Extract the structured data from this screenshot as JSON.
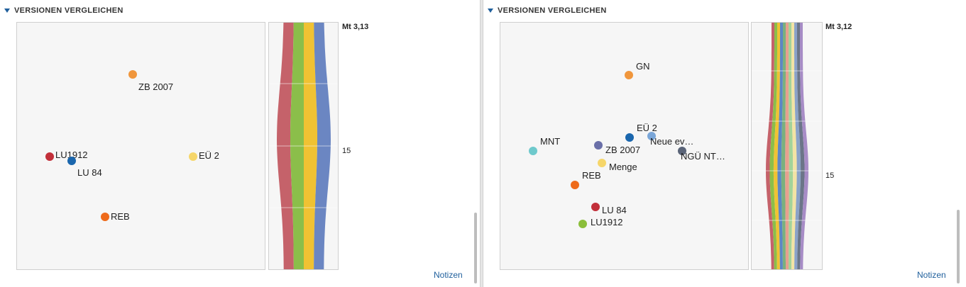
{
  "left_panel": {
    "title": "VERSIONEN VERGLEICHEN",
    "ref_top": "Mt 3,13",
    "ref_mid": "15",
    "notes_label": "Notizen",
    "points": [
      {
        "label": "ZB 2007",
        "color": "#f0963c"
      },
      {
        "label": "LU1912",
        "color": "#c2303a"
      },
      {
        "label": "LU 84",
        "color": "#1a66ad"
      },
      {
        "label": "EÜ 2",
        "color": "#f6d66a"
      },
      {
        "label": "REB",
        "color": "#ee6a1a"
      }
    ],
    "stream_colors": [
      "#c5626a",
      "#8bbe4a",
      "#f0c233",
      "#6b86c2"
    ]
  },
  "right_panel": {
    "title": "VERSIONEN VERGLEICHEN",
    "ref_top": "Mt 3,12",
    "ref_mid": "15",
    "notes_label": "Notizen",
    "points": [
      {
        "label": "GN",
        "color": "#f0963c"
      },
      {
        "label": "EÜ 2",
        "color": "#1a66ad"
      },
      {
        "label": "Neue ev…",
        "color": "#7aa6d8"
      },
      {
        "label": "MNT",
        "color": "#6ec9cc"
      },
      {
        "label": "ZB 2007",
        "color": "#6a6fa8"
      },
      {
        "label": "NGÜ NT…",
        "color": "#5a6478"
      },
      {
        "label": "Menge",
        "color": "#f6d66a"
      },
      {
        "label": "REB",
        "color": "#ee6a1a"
      },
      {
        "label": "LU 84",
        "color": "#c2303a"
      },
      {
        "label": "LU1912",
        "color": "#8bbe3a"
      }
    ],
    "stream_colors": [
      "#c5626a",
      "#8bbe4a",
      "#f0c233",
      "#5d86c4",
      "#7ab07e",
      "#e8a08f",
      "#a3d39a",
      "#f3e3a4",
      "#8aa2c8",
      "#6b7588",
      "#a78cc6"
    ]
  }
}
